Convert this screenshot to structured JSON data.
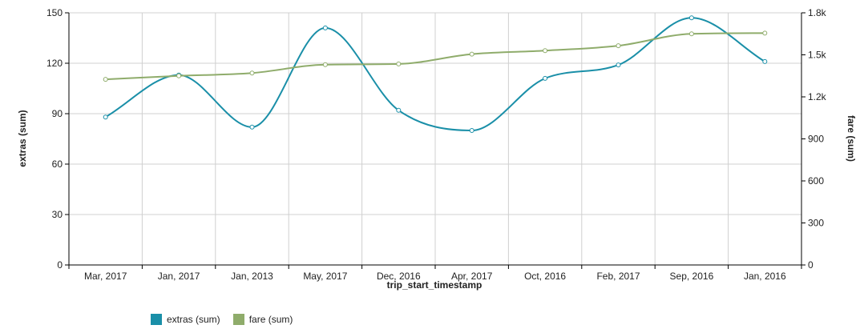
{
  "chart_data": {
    "type": "line",
    "xlabel": "trip_start_timestamp",
    "ylabel_left": "extras (sum)",
    "ylabel_right": "fare (sum)",
    "categories": [
      "Mar, 2017",
      "Jan, 2017",
      "Jan, 2013",
      "May, 2017",
      "Dec, 2016",
      "Apr, 2017",
      "Oct, 2016",
      "Feb, 2017",
      "Sep, 2016",
      "Jan, 2016"
    ],
    "y_left": {
      "ylim": [
        0,
        150
      ],
      "ticks": [
        "0",
        "30",
        "60",
        "90",
        "120",
        "150"
      ],
      "tick_values": [
        0,
        30,
        60,
        90,
        120,
        150
      ]
    },
    "y_right": {
      "ylim": [
        0,
        1800
      ],
      "ticks": [
        "0",
        "300",
        "600",
        "900",
        "1.2k",
        "1.5k",
        "1.8k"
      ],
      "tick_values": [
        0,
        300,
        600,
        900,
        1200,
        1500,
        1800
      ]
    },
    "series": [
      {
        "name": "extras (sum)",
        "axis": "left",
        "color": "#1a8fa8",
        "values": [
          88,
          113,
          82,
          141,
          92,
          80,
          111,
          119,
          147,
          121
        ]
      },
      {
        "name": "fare (sum)",
        "axis": "right",
        "color": "#8fac6b",
        "values": [
          1325,
          1350,
          1370,
          1430,
          1435,
          1505,
          1530,
          1565,
          1650,
          1655
        ]
      }
    ],
    "grid": true,
    "legend_position": "bottom-left"
  }
}
